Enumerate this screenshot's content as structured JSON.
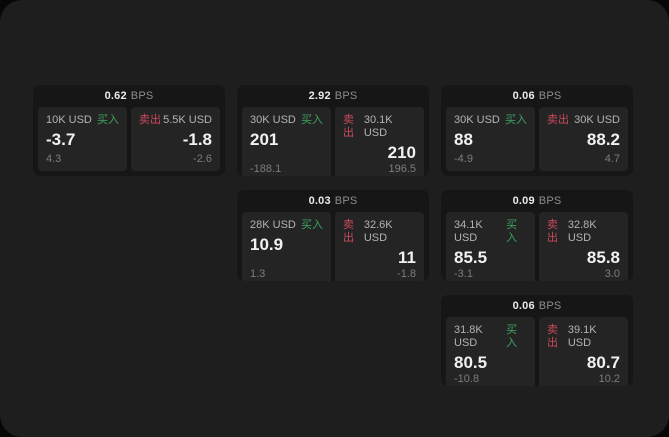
{
  "colors": {
    "buy_green": "#3da55e",
    "sell_red": "#c84a5c",
    "page_bg": "#1e1e1e",
    "card_bg": "#161616",
    "panel_bg": "#242424"
  },
  "cards": [
    {
      "bps": "0.62",
      "unit": "BPS",
      "buy": {
        "size": "10K USD",
        "side": "买入",
        "price": "-3.7",
        "change": "4.3"
      },
      "sell": {
        "side": "卖出",
        "size": "5.5K USD",
        "price": "-1.8",
        "change": "-2.6"
      }
    },
    {
      "bps": "2.92",
      "unit": "BPS",
      "buy": {
        "size": "30K USD",
        "side": "买入",
        "price": "201",
        "change": "-188.1"
      },
      "sell": {
        "side": "卖出",
        "size": "30.1K USD",
        "price": "210",
        "change": "196.5"
      }
    },
    {
      "bps": "0.06",
      "unit": "BPS",
      "buy": {
        "size": "30K USD",
        "side": "买入",
        "price": "88",
        "change": "-4.9"
      },
      "sell": {
        "side": "卖出",
        "size": "30K USD",
        "price": "88.2",
        "change": "4.7"
      }
    },
    {
      "bps": "0.03",
      "unit": "BPS",
      "buy": {
        "size": "28K USD",
        "side": "买入",
        "price": "10.9",
        "change": "1.3"
      },
      "sell": {
        "side": "卖出",
        "size": "32.6K USD",
        "price": "11",
        "change": "-1.8"
      }
    },
    {
      "bps": "0.09",
      "unit": "BPS",
      "buy": {
        "size": "34.1K USD",
        "side": "买入",
        "price": "85.5",
        "change": "-3.1"
      },
      "sell": {
        "side": "卖出",
        "size": "32.8K USD",
        "price": "85.8",
        "change": "3.0"
      }
    },
    {
      "bps": "0.06",
      "unit": "BPS",
      "buy": {
        "size": "31.8K USD",
        "side": "买入",
        "price": "80.5",
        "change": "-10.8"
      },
      "sell": {
        "side": "卖出",
        "size": "39.1K USD",
        "price": "80.7",
        "change": "10.2"
      }
    }
  ]
}
